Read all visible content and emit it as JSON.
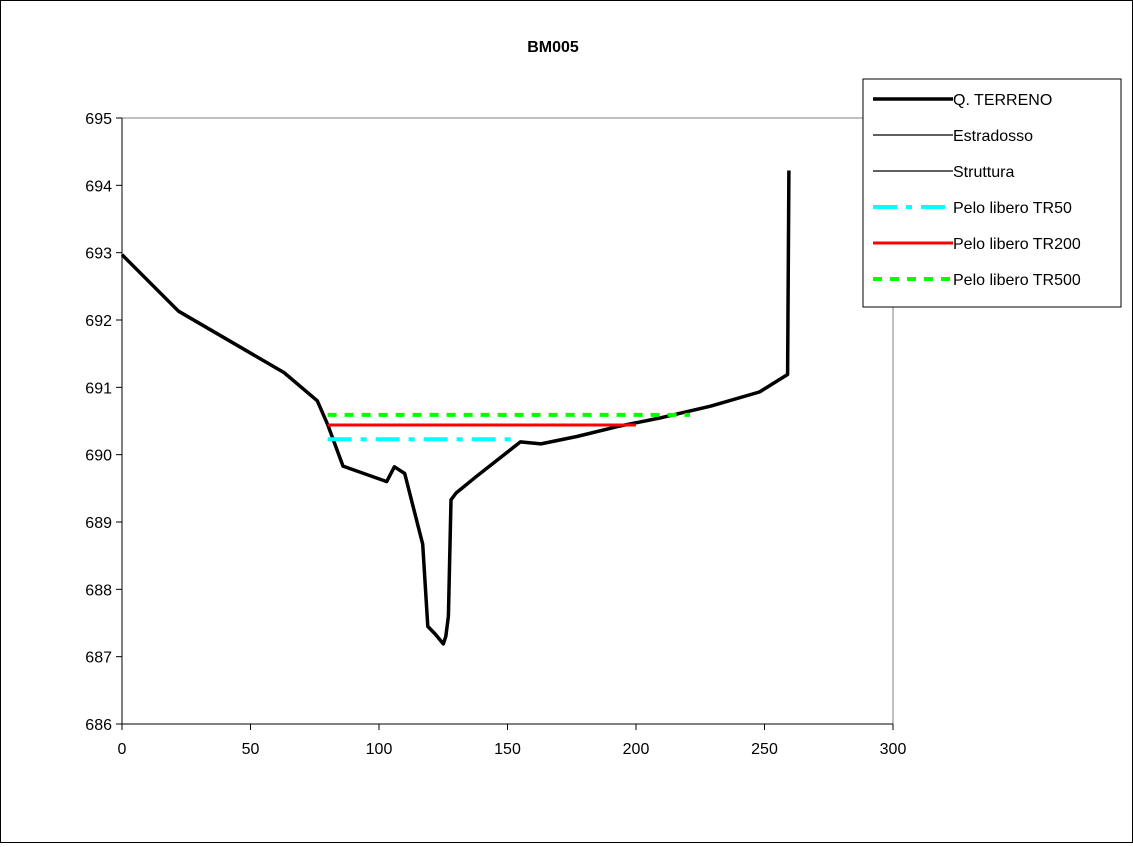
{
  "chart_data": {
    "type": "line",
    "title": "BM005",
    "xlabel": "",
    "ylabel": "",
    "xlim": [
      0,
      300
    ],
    "ylim": [
      686,
      695
    ],
    "xticks": [
      "0",
      "50",
      "100",
      "150",
      "200",
      "250",
      "300"
    ],
    "yticks": [
      "686",
      "687",
      "688",
      "689",
      "690",
      "691",
      "692",
      "693",
      "694",
      "695"
    ],
    "grid": "top border only",
    "legend_position": "top-right",
    "series": [
      {
        "name": "Q. TERRENO",
        "color": "#000000",
        "style": "solid-thick",
        "x": [
          0,
          22,
          63,
          76,
          80,
          86,
          103,
          106,
          110,
          117,
          119,
          122,
          125,
          126,
          127,
          128,
          130,
          138,
          155,
          163,
          177,
          193,
          210,
          229,
          248,
          259,
          259,
          259.5
        ],
        "y": [
          692.97,
          692.13,
          691.22,
          690.8,
          690.45,
          689.83,
          689.6,
          689.82,
          689.72,
          688.67,
          687.45,
          687.33,
          687.19,
          687.3,
          687.6,
          689.33,
          689.43,
          689.68,
          690.19,
          690.16,
          690.27,
          690.42,
          690.55,
          690.72,
          690.93,
          691.19,
          691.19,
          694.22
        ]
      },
      {
        "name": "Estradosso",
        "color": "#000000",
        "style": "solid-thin",
        "x": [],
        "y": []
      },
      {
        "name": "Struttura",
        "color": "#000000",
        "style": "solid-thin",
        "x": [],
        "y": []
      },
      {
        "name": "Pelo libero TR50",
        "color": "#00ffff",
        "style": "dash-dot",
        "x": [
          80,
          152
        ],
        "y": [
          690.23,
          690.23
        ]
      },
      {
        "name": "Pelo libero TR200",
        "color": "#ff0000",
        "style": "solid",
        "x": [
          80,
          200
        ],
        "y": [
          690.44,
          690.44
        ]
      },
      {
        "name": "Pelo libero TR500",
        "color": "#00ff00",
        "style": "dotted",
        "x": [
          80,
          221
        ],
        "y": [
          690.59,
          690.59
        ]
      }
    ]
  }
}
